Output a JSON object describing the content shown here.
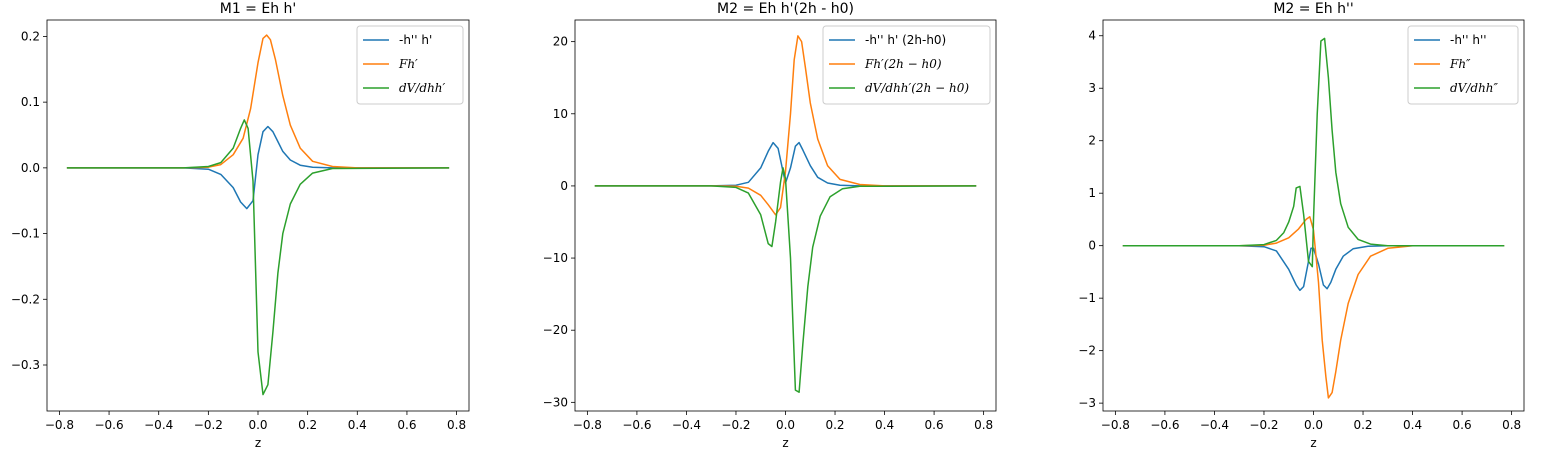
{
  "chart_data": [
    {
      "type": "line",
      "title": "M1 = Eh h'",
      "xlabel": "z",
      "ylabel": "",
      "xlim": [
        -0.85,
        0.85
      ],
      "ylim": [
        -0.37,
        0.225
      ],
      "xticks": [
        -0.8,
        -0.6,
        -0.4,
        -0.2,
        0.0,
        0.2,
        0.4,
        0.6,
        0.8
      ],
      "xtick_labels": [
        "−0.8",
        "−0.6",
        "−0.4",
        "−0.2",
        "0.0",
        "0.2",
        "0.4",
        "0.6",
        "0.8"
      ],
      "yticks": [
        -0.3,
        -0.2,
        -0.1,
        0.0,
        0.1,
        0.2
      ],
      "ytick_labels": [
        "−0.3",
        "−0.2",
        "−0.1",
        "0.0",
        "0.1",
        "0.2"
      ],
      "legend_position": "upper right",
      "series": [
        {
          "name": "-h'' h'",
          "color": "#1f77b4",
          "points": [
            [
              -0.77,
              0
            ],
            [
              -0.3,
              0
            ],
            [
              -0.2,
              -0.002
            ],
            [
              -0.15,
              -0.01
            ],
            [
              -0.1,
              -0.03
            ],
            [
              -0.07,
              -0.052
            ],
            [
              -0.045,
              -0.062
            ],
            [
              -0.02,
              -0.05
            ],
            [
              0.0,
              0.02
            ],
            [
              0.02,
              0.055
            ],
            [
              0.04,
              0.063
            ],
            [
              0.06,
              0.055
            ],
            [
              0.08,
              0.04
            ],
            [
              0.1,
              0.025
            ],
            [
              0.13,
              0.012
            ],
            [
              0.17,
              0.004
            ],
            [
              0.22,
              0.001
            ],
            [
              0.3,
              0
            ],
            [
              0.77,
              0
            ]
          ]
        },
        {
          "name": "Fh′",
          "color": "#ff7f0e",
          "points": [
            [
              -0.77,
              0
            ],
            [
              -0.3,
              0
            ],
            [
              -0.2,
              0.001
            ],
            [
              -0.15,
              0.005
            ],
            [
              -0.1,
              0.02
            ],
            [
              -0.06,
              0.045
            ],
            [
              -0.03,
              0.09
            ],
            [
              0.0,
              0.16
            ],
            [
              0.02,
              0.197
            ],
            [
              0.035,
              0.202
            ],
            [
              0.05,
              0.195
            ],
            [
              0.07,
              0.165
            ],
            [
              0.1,
              0.11
            ],
            [
              0.13,
              0.065
            ],
            [
              0.17,
              0.03
            ],
            [
              0.22,
              0.01
            ],
            [
              0.3,
              0.002
            ],
            [
              0.4,
              0
            ],
            [
              0.77,
              0
            ]
          ]
        },
        {
          "name": "dV/dhh′",
          "color": "#2ca02c",
          "points": [
            [
              -0.77,
              0
            ],
            [
              -0.3,
              0
            ],
            [
              -0.2,
              0.002
            ],
            [
              -0.15,
              0.008
            ],
            [
              -0.1,
              0.03
            ],
            [
              -0.07,
              0.06
            ],
            [
              -0.055,
              0.073
            ],
            [
              -0.04,
              0.06
            ],
            [
              -0.02,
              -0.02
            ],
            [
              0.0,
              -0.28
            ],
            [
              0.02,
              -0.345
            ],
            [
              0.04,
              -0.33
            ],
            [
              0.06,
              -0.25
            ],
            [
              0.08,
              -0.16
            ],
            [
              0.1,
              -0.1
            ],
            [
              0.13,
              -0.055
            ],
            [
              0.17,
              -0.025
            ],
            [
              0.22,
              -0.008
            ],
            [
              0.3,
              -0.001
            ],
            [
              0.77,
              0
            ]
          ]
        }
      ]
    },
    {
      "type": "line",
      "title": "M2 = Eh h'(2h - h0)",
      "xlabel": "z",
      "ylabel": "",
      "xlim": [
        -0.85,
        0.85
      ],
      "ylim": [
        -31.2,
        23.0
      ],
      "xticks": [
        -0.8,
        -0.6,
        -0.4,
        -0.2,
        0.0,
        0.2,
        0.4,
        0.6,
        0.8
      ],
      "xtick_labels": [
        "−0.8",
        "−0.6",
        "−0.4",
        "−0.2",
        "0.0",
        "0.2",
        "0.4",
        "0.6",
        "0.8"
      ],
      "yticks": [
        -30,
        -20,
        -10,
        0,
        10,
        20
      ],
      "ytick_labels": [
        "−30",
        "−20",
        "−10",
        "0",
        "10",
        "20"
      ],
      "legend_position": "upper right",
      "series": [
        {
          "name": "-h'' h' (2h-h0)",
          "color": "#1f77b4",
          "points": [
            [
              -0.77,
              0
            ],
            [
              -0.3,
              0
            ],
            [
              -0.2,
              0.1
            ],
            [
              -0.15,
              0.5
            ],
            [
              -0.1,
              2.5
            ],
            [
              -0.07,
              4.8
            ],
            [
              -0.05,
              6.0
            ],
            [
              -0.03,
              5.2
            ],
            [
              -0.01,
              2.0
            ],
            [
              0.0,
              0.4
            ],
            [
              0.02,
              2.5
            ],
            [
              0.04,
              5.5
            ],
            [
              0.055,
              6.0
            ],
            [
              0.07,
              5.0
            ],
            [
              0.1,
              2.8
            ],
            [
              0.13,
              1.2
            ],
            [
              0.17,
              0.4
            ],
            [
              0.22,
              0.1
            ],
            [
              0.3,
              0
            ],
            [
              0.77,
              0
            ]
          ]
        },
        {
          "name": "Fh′(2h − h0)",
          "color": "#ff7f0e",
          "points": [
            [
              -0.77,
              0
            ],
            [
              -0.3,
              0
            ],
            [
              -0.2,
              -0.05
            ],
            [
              -0.15,
              -0.3
            ],
            [
              -0.1,
              -1.3
            ],
            [
              -0.07,
              -2.6
            ],
            [
              -0.04,
              -4.0
            ],
            [
              -0.02,
              -3.0
            ],
            [
              0.0,
              2.0
            ],
            [
              0.02,
              10.0
            ],
            [
              0.035,
              17.5
            ],
            [
              0.05,
              20.8
            ],
            [
              0.065,
              20.0
            ],
            [
              0.08,
              16.5
            ],
            [
              0.1,
              11.5
            ],
            [
              0.13,
              6.5
            ],
            [
              0.17,
              2.8
            ],
            [
              0.22,
              0.9
            ],
            [
              0.3,
              0.2
            ],
            [
              0.4,
              0
            ],
            [
              0.77,
              0
            ]
          ]
        },
        {
          "name": "dV/dhh′(2h − h0)",
          "color": "#2ca02c",
          "points": [
            [
              -0.77,
              0
            ],
            [
              -0.3,
              0
            ],
            [
              -0.2,
              -0.2
            ],
            [
              -0.15,
              -1.0
            ],
            [
              -0.1,
              -4.0
            ],
            [
              -0.07,
              -8.0
            ],
            [
              -0.055,
              -8.4
            ],
            [
              -0.04,
              -5.0
            ],
            [
              -0.02,
              0.5
            ],
            [
              -0.01,
              2.5
            ],
            [
              0.0,
              1.0
            ],
            [
              0.02,
              -10.0
            ],
            [
              0.04,
              -28.3
            ],
            [
              0.055,
              -28.6
            ],
            [
              0.07,
              -22.0
            ],
            [
              0.09,
              -14.0
            ],
            [
              0.11,
              -8.5
            ],
            [
              0.14,
              -4.2
            ],
            [
              0.18,
              -1.5
            ],
            [
              0.23,
              -0.4
            ],
            [
              0.3,
              -0.05
            ],
            [
              0.77,
              0
            ]
          ]
        }
      ]
    },
    {
      "type": "line",
      "title": "M2 = Eh h''",
      "xlabel": "z",
      "ylabel": "",
      "xlim": [
        -0.85,
        0.85
      ],
      "ylim": [
        -3.15,
        4.3
      ],
      "xticks": [
        -0.8,
        -0.6,
        -0.4,
        -0.2,
        0.0,
        0.2,
        0.4,
        0.6,
        0.8
      ],
      "xtick_labels": [
        "−0.8",
        "−0.6",
        "−0.4",
        "−0.2",
        "0.0",
        "0.2",
        "0.4",
        "0.6",
        "0.8"
      ],
      "yticks": [
        -3,
        -2,
        -1,
        0,
        1,
        2,
        3,
        4
      ],
      "ytick_labels": [
        "−3",
        "−2",
        "−1",
        "0",
        "1",
        "2",
        "3",
        "4"
      ],
      "legend_position": "upper right",
      "series": [
        {
          "name": "-h'' h''",
          "color": "#1f77b4",
          "points": [
            [
              -0.77,
              0
            ],
            [
              -0.3,
              0
            ],
            [
              -0.2,
              -0.02
            ],
            [
              -0.15,
              -0.1
            ],
            [
              -0.1,
              -0.45
            ],
            [
              -0.07,
              -0.75
            ],
            [
              -0.055,
              -0.85
            ],
            [
              -0.04,
              -0.78
            ],
            [
              -0.02,
              -0.3
            ],
            [
              -0.01,
              -0.05
            ],
            [
              0.0,
              -0.05
            ],
            [
              0.02,
              -0.35
            ],
            [
              0.04,
              -0.75
            ],
            [
              0.055,
              -0.82
            ],
            [
              0.07,
              -0.7
            ],
            [
              0.09,
              -0.45
            ],
            [
              0.12,
              -0.2
            ],
            [
              0.16,
              -0.06
            ],
            [
              0.22,
              -0.01
            ],
            [
              0.3,
              0
            ],
            [
              0.77,
              0
            ]
          ]
        },
        {
          "name": "Fh″",
          "color": "#ff7f0e",
          "points": [
            [
              -0.77,
              0
            ],
            [
              -0.3,
              0
            ],
            [
              -0.2,
              0.01
            ],
            [
              -0.15,
              0.05
            ],
            [
              -0.1,
              0.15
            ],
            [
              -0.06,
              0.32
            ],
            [
              -0.03,
              0.5
            ],
            [
              -0.015,
              0.55
            ],
            [
              0.0,
              0.3
            ],
            [
              0.02,
              -0.7
            ],
            [
              0.035,
              -1.8
            ],
            [
              0.05,
              -2.5
            ],
            [
              0.06,
              -2.9
            ],
            [
              0.075,
              -2.8
            ],
            [
              0.09,
              -2.4
            ],
            [
              0.11,
              -1.8
            ],
            [
              0.14,
              -1.1
            ],
            [
              0.18,
              -0.55
            ],
            [
              0.23,
              -0.2
            ],
            [
              0.3,
              -0.05
            ],
            [
              0.4,
              0
            ],
            [
              0.77,
              0
            ]
          ]
        },
        {
          "name": "dV/dhh″",
          "color": "#2ca02c",
          "points": [
            [
              -0.77,
              0
            ],
            [
              -0.3,
              0
            ],
            [
              -0.2,
              0.02
            ],
            [
              -0.15,
              0.1
            ],
            [
              -0.12,
              0.25
            ],
            [
              -0.1,
              0.45
            ],
            [
              -0.08,
              0.75
            ],
            [
              -0.07,
              1.1
            ],
            [
              -0.055,
              1.13
            ],
            [
              -0.04,
              0.6
            ],
            [
              -0.02,
              -0.3
            ],
            [
              -0.005,
              -0.4
            ],
            [
              0.0,
              0.5
            ],
            [
              0.015,
              2.5
            ],
            [
              0.03,
              3.9
            ],
            [
              0.045,
              3.95
            ],
            [
              0.06,
              3.2
            ],
            [
              0.075,
              2.2
            ],
            [
              0.09,
              1.4
            ],
            [
              0.11,
              0.8
            ],
            [
              0.14,
              0.35
            ],
            [
              0.18,
              0.12
            ],
            [
              0.23,
              0.03
            ],
            [
              0.3,
              0
            ],
            [
              0.77,
              0
            ]
          ]
        }
      ]
    }
  ]
}
